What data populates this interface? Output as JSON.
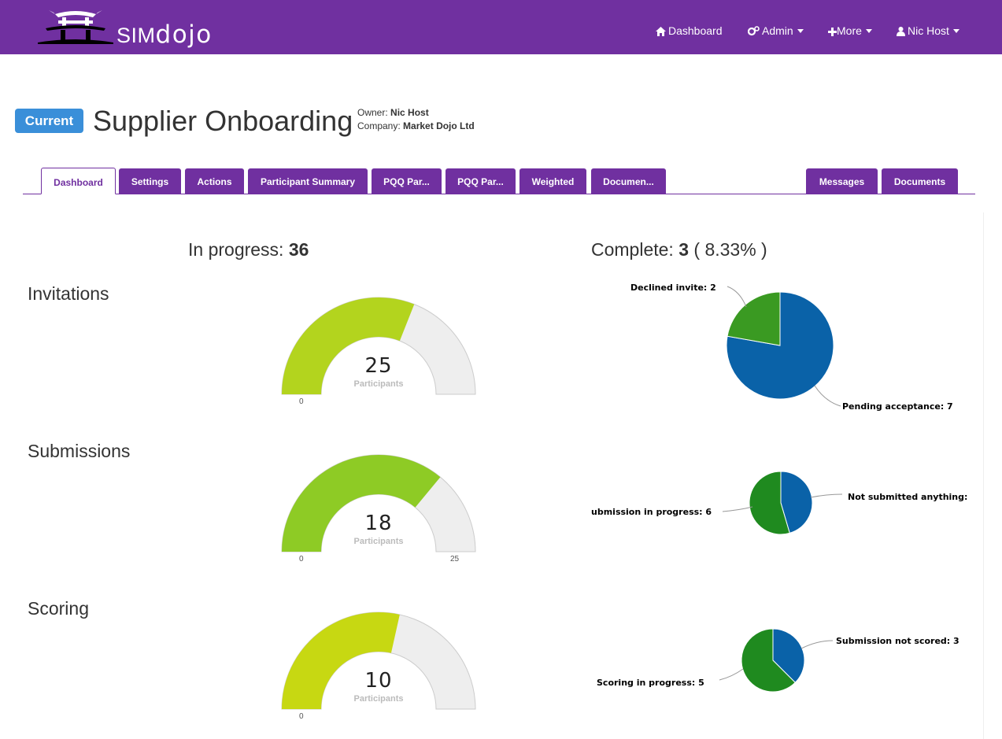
{
  "brand": {
    "sim": "SIM",
    "dojo": "dojo"
  },
  "nav": {
    "dashboard": "Dashboard",
    "admin": "Admin",
    "more": "More",
    "user": "Nic Host"
  },
  "event": {
    "status_badge": "Current",
    "title": "Supplier Onboarding",
    "owner_label": "Owner:",
    "owner": "Nic Host",
    "company_label": "Company:",
    "company": "Market Dojo Ltd"
  },
  "tabs": {
    "left": [
      "Dashboard",
      "Settings",
      "Actions",
      "Participant Summary",
      "PQQ Par...",
      "PQQ Par...",
      "Weighted",
      "Documen..."
    ],
    "right": [
      "Messages",
      "Documents"
    ],
    "active": "Dashboard"
  },
  "summary": {
    "in_progress_label": "In progress:",
    "in_progress_value": "36",
    "complete_label": "Complete:",
    "complete_value": "3",
    "complete_pct": "( 8.33% )"
  },
  "sections": {
    "invitations": "Invitations",
    "submissions": "Submissions",
    "scoring": "Scoring"
  },
  "gauges": {
    "invitations": {
      "value": "25",
      "unit": "Participants",
      "min": "0",
      "fraction": 0.62,
      "color": "#b3d41e"
    },
    "submissions": {
      "value": "18",
      "unit": "Participants",
      "min": "0",
      "max": "25",
      "fraction": 0.72,
      "color": "#8ecb25"
    },
    "scoring": {
      "value": "10",
      "unit": "Participants",
      "min": "0",
      "fraction": 0.57,
      "color": "#c7d812"
    }
  },
  "pies": {
    "invitations": {
      "slices": [
        {
          "label": "Pending acceptance: 7",
          "value": 7,
          "color": "#0a62a8"
        },
        {
          "label": "Declined invite: 2",
          "value": 2,
          "color": "#3a9a22"
        }
      ]
    },
    "submissions": {
      "slices": [
        {
          "label": "Not submitted anything:",
          "value": 5,
          "color": "#0a62a8"
        },
        {
          "label": "ubmission in progress: 6",
          "value": 6,
          "color": "#1f8a1f"
        }
      ]
    },
    "scoring": {
      "slices": [
        {
          "label": "Submission not scored: 3",
          "value": 3,
          "color": "#0a62a8"
        },
        {
          "label": "Scoring in progress: 5",
          "value": 5,
          "color": "#1f8a1f"
        }
      ]
    }
  }
}
